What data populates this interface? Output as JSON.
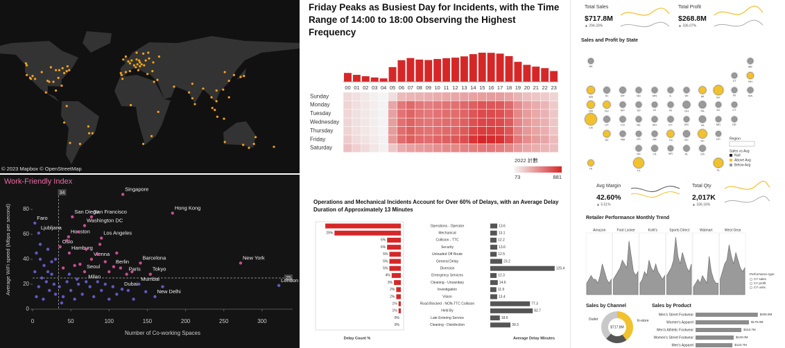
{
  "chart_data": [
    {
      "type": "map",
      "attribution": "© 2023 Mapbox © OpenStreetMap",
      "color": "#f5a31a",
      "lon": [
        -122,
        -118,
        -117,
        -122,
        -104,
        -97,
        -95,
        -90,
        -87,
        -84,
        -80,
        -77,
        -74,
        -71,
        -112,
        -115,
        -93,
        -83,
        -79,
        -73,
        -123,
        -99,
        -87,
        -47,
        -43,
        -58,
        -70,
        -77,
        -74,
        -48,
        0,
        2,
        -3,
        -9,
        -8,
        4,
        13,
        10,
        11,
        16,
        12,
        9,
        14,
        19,
        21,
        24,
        10,
        18,
        25,
        23,
        29,
        -6,
        -3,
        30,
        37,
        14,
        2,
        7,
        -7,
        31,
        35,
        55,
        36,
        18,
        28,
        3,
        77,
        73,
        77,
        100,
        101,
        104,
        106,
        106,
        114,
        121,
        116,
        127,
        139,
        135,
        121,
        107,
        115,
        90,
        80,
        151,
        145,
        153,
        116,
        175,
        138
      ],
      "lat": [
        37,
        34,
        33,
        47,
        40,
        31,
        30,
        30,
        42,
        34,
        26,
        39,
        41,
        42,
        33,
        36,
        45,
        42,
        44,
        46,
        49,
        19,
        21,
        -23,
        -23,
        -34,
        -33,
        -12,
        5,
        -16,
        51,
        49,
        40,
        39,
        37,
        52,
        52,
        53,
        48,
        48,
        42,
        45,
        46,
        47,
        52,
        60,
        60,
        59,
        54,
        38,
        41,
        53,
        56,
        50,
        56,
        50,
        41,
        47,
        33,
        30,
        32,
        25,
        -1,
        -34,
        -26,
        6,
        13,
        19,
        28,
        14,
        3,
        1,
        10,
        21,
        22,
        31,
        40,
        37,
        36,
        35,
        14,
        -6,
        -8,
        23,
        7,
        -34,
        -38,
        -27,
        -32,
        -37,
        -35
      ]
    },
    {
      "type": "scatter",
      "title": "Work-Friendly Index",
      "xlabel": "Number of Co-working Spaces",
      "ylabel": "Average WiFi speed (Mbps per second)",
      "xlim": [
        0,
        340
      ],
      "ylim": [
        0,
        95
      ],
      "xticks": [
        0,
        50,
        100,
        150,
        200,
        250,
        300
      ],
      "yticks": [
        0,
        20,
        40,
        60,
        80
      ],
      "ref_x": 34,
      "ref_y": 25,
      "series": [
        {
          "color": "#d9559b",
          "x": [
            118,
            183,
            52,
            77,
            68,
            47,
            90,
            36,
            48,
            77,
            141,
            272,
            106,
            68,
            123,
            154,
            60,
            45,
            70,
            85,
            95,
            62,
            40,
            55,
            100,
            115,
            130,
            88,
            110
          ],
          "y": [
            92,
            77,
            74,
            74,
            67,
            58,
            57,
            50,
            45,
            40,
            37,
            37,
            34,
            30,
            28,
            28,
            62,
            55,
            48,
            44,
            38,
            36,
            33,
            35,
            30,
            33,
            30,
            52,
            45
          ],
          "labels": [
            "Singapore",
            "Hong Kong",
            "San Diego",
            "San Francisco",
            "Washington DC",
            "Houston",
            "Los Angeles",
            "Oslo",
            "Hamburg",
            "Vienna",
            "Barcelona",
            "New York",
            "Berlin",
            "Seoul",
            "Paris",
            "Tokyo",
            null,
            null,
            null,
            null,
            null,
            null,
            null,
            null,
            null,
            null,
            null,
            null,
            null
          ]
        },
        {
          "color": "#6a5fd8",
          "x": [
            3,
            8,
            70,
            139,
            117,
            160,
            322,
            5,
            10,
            15,
            20,
            25,
            12,
            18,
            8,
            22,
            30,
            5,
            14,
            28,
            35,
            40,
            45,
            50,
            55,
            60,
            65,
            75,
            80,
            85,
            90,
            95,
            100,
            105,
            110,
            125,
            30,
            20,
            10,
            25,
            3,
            38,
            48,
            58,
            132,
            148,
            170
          ],
          "y": [
            69,
            61,
            22,
            20,
            16,
            10,
            19,
            45,
            40,
            35,
            30,
            28,
            25,
            22,
            18,
            15,
            12,
            10,
            8,
            20,
            18,
            10,
            22,
            15,
            8,
            20,
            12,
            18,
            10,
            22,
            15,
            20,
            8,
            18,
            12,
            15,
            40,
            48,
            52,
            38,
            30,
            5,
            28,
            24,
            8,
            14,
            18
          ],
          "labels": [
            "Faro",
            "Ljubljana",
            "Milan",
            "Mumbai",
            "Dubai",
            "New Delhi",
            "London",
            null,
            null,
            null,
            null,
            null,
            null,
            null,
            null,
            null,
            null,
            null,
            null,
            null,
            null,
            null,
            null,
            null,
            null,
            null,
            null,
            null,
            null,
            null,
            null,
            null,
            null,
            null,
            null,
            null,
            null,
            null,
            null,
            null,
            null,
            null,
            null,
            null,
            null,
            null,
            null
          ]
        }
      ]
    },
    {
      "type": "heatmap",
      "title": "Friday Peaks as Busiest Day for Incidents, with the Time Range of 14:00 to 18:00 Observing the Highest Frequency",
      "x": [
        "00",
        "01",
        "02",
        "03",
        "04",
        "05",
        "06",
        "07",
        "08",
        "09",
        "10",
        "11",
        "12",
        "13",
        "14",
        "15",
        "16",
        "17",
        "18",
        "19",
        "20",
        "21",
        "22",
        "23"
      ],
      "categories": [
        "Sunday",
        "Monday",
        "Tuesday",
        "Wednesday",
        "Thursday",
        "Friday",
        "Saturday"
      ],
      "values": [
        [
          180,
          150,
          120,
          90,
          73,
          160,
          300,
          320,
          330,
          340,
          360,
          370,
          380,
          390,
          400,
          410,
          420,
          410,
          380,
          330,
          280,
          260,
          240,
          200
        ],
        [
          200,
          160,
          130,
          100,
          80,
          380,
          560,
          620,
          560,
          540,
          560,
          580,
          590,
          620,
          660,
          700,
          690,
          680,
          620,
          480,
          400,
          360,
          320,
          240
        ],
        [
          190,
          150,
          120,
          95,
          78,
          400,
          580,
          640,
          580,
          560,
          580,
          600,
          610,
          640,
          700,
          740,
          740,
          720,
          660,
          500,
          420,
          370,
          330,
          250
        ],
        [
          195,
          150,
          125,
          98,
          80,
          410,
          590,
          650,
          590,
          570,
          590,
          610,
          620,
          660,
          720,
          760,
          760,
          740,
          680,
          510,
          430,
          380,
          340,
          255
        ],
        [
          200,
          160,
          130,
          100,
          82,
          420,
          600,
          660,
          600,
          580,
          600,
          620,
          640,
          680,
          760,
          800,
          790,
          770,
          700,
          520,
          440,
          390,
          350,
          260
        ],
        [
          230,
          170,
          140,
          110,
          85,
          430,
          610,
          670,
          620,
          600,
          640,
          660,
          690,
          730,
          830,
          881,
          870,
          840,
          740,
          560,
          480,
          420,
          380,
          300
        ],
        [
          280,
          220,
          170,
          130,
          90,
          250,
          360,
          400,
          420,
          440,
          470,
          490,
          500,
          520,
          540,
          560,
          560,
          540,
          500,
          430,
          380,
          350,
          320,
          290
        ]
      ],
      "totals": [
        1475,
        1160,
        935,
        723,
        568,
        2450,
        3600,
        3960,
        3700,
        3630,
        3800,
        3930,
        4030,
        4240,
        4610,
        4851,
        4830,
        4700,
        4280,
        3330,
        2830,
        2530,
        2280,
        1795
      ],
      "bar_color": "#d62728",
      "color_low": "#f4f4f4",
      "color_high": "#d62728",
      "colorbar": {
        "title": "2022 計數",
        "min": 73,
        "max": 881
      }
    },
    {
      "type": "bar",
      "orientation": "horizontal",
      "title": "Operations and Mechanical Incidents Account for Over 60% of Delays, with an Average Delay Duration of Approximately 13 Minutes",
      "categories": [
        "Operations - Operator",
        "Mechanical",
        "Collision - TTC",
        "Security",
        "Unloaded Off Route",
        "General Delay",
        "Diversion",
        "Emergency Services",
        "Cleaning - Unsanitary",
        "Investigation",
        "Vision",
        "Road Blocked - NON-TTC Collision",
        "Held By",
        "Late Entering Service",
        "Cleaning - Disinfection"
      ],
      "series": [
        {
          "name": "Delay Count %",
          "color": "#d62728",
          "values": [
            33,
            29,
            6,
            6,
            5,
            5,
            5,
            4,
            3,
            2,
            2,
            1,
            1,
            0,
            0
          ],
          "value_labels": [
            null,
            "29%",
            "6%",
            "6%",
            "5%",
            "5%",
            "5%",
            "4%",
            "3%",
            "2%",
            "2%",
            "1%",
            "1%",
            "0%",
            "0%"
          ]
        },
        {
          "name": "Average Delay Minutes",
          "color": "#555555",
          "values": [
            13.6,
            13.1,
            12.2,
            13.6,
            12.5,
            23.2,
            125.4,
            12.3,
            14.6,
            11.9,
            13.4,
            77.3,
            82.7,
            18.6,
            39.3
          ]
        }
      ]
    },
    {
      "type": "tile_map",
      "title": "Sales and Profit by State",
      "categories": [
        "AK",
        "ME",
        "VT",
        "NH",
        "WA",
        "ID",
        "MT",
        "ND",
        "MN",
        "IL",
        "WI",
        "MI",
        "NY",
        "RI",
        "MA",
        "OR",
        "NV",
        "WY",
        "SD",
        "IA",
        "IN",
        "OH",
        "PA",
        "NJ",
        "CT",
        "CA",
        "UT",
        "CO",
        "NE",
        "MO",
        "KY",
        "WV",
        "VA",
        "MD",
        "DE",
        "AZ",
        "NM",
        "KS",
        "AR",
        "TN",
        "NC",
        "SC",
        "DC",
        "OK",
        "LA",
        "MS",
        "AL",
        "GA",
        "HI",
        "TX",
        "FL"
      ],
      "values": [
        8,
        9,
        8,
        14,
        22,
        12,
        12,
        9,
        9,
        9,
        9,
        18,
        39,
        8,
        9,
        20,
        18,
        9,
        9,
        8,
        9,
        18,
        17,
        8,
        8,
        60,
        12,
        10,
        9,
        9,
        10,
        8,
        15,
        8,
        8,
        16,
        9,
        8,
        9,
        18,
        14,
        30,
        7,
        10,
        12,
        8,
        11,
        12,
        11,
        46,
        37
      ],
      "above_avg": [
        false,
        false,
        false,
        true,
        true,
        false,
        false,
        false,
        false,
        false,
        false,
        true,
        true,
        false,
        false,
        true,
        true,
        false,
        false,
        false,
        false,
        false,
        false,
        false,
        false,
        true,
        false,
        false,
        false,
        false,
        false,
        false,
        false,
        false,
        false,
        true,
        false,
        false,
        false,
        true,
        false,
        true,
        false,
        false,
        false,
        false,
        false,
        false,
        true,
        true,
        true
      ],
      "filter_label": "Region",
      "legend_title": "Sales vs Avg",
      "legend": [
        {
          "name": "Null",
          "color": "#222222"
        },
        {
          "name": "Above Avg",
          "color": "#f2c12e"
        },
        {
          "name": "Below Avg",
          "color": "#9a9a9a"
        }
      ]
    },
    {
      "type": "area",
      "title": "Retailer Performance Monthly Trend",
      "color": "#9a9a9a",
      "series": [
        {
          "name": "Amazon",
          "values": [
            3,
            4,
            5,
            4,
            4,
            3,
            5,
            8,
            6,
            4,
            3,
            4
          ]
        },
        {
          "name": "Foot Locker",
          "values": [
            4,
            5,
            6,
            7,
            9,
            8,
            7,
            14,
            10,
            6,
            5,
            6
          ]
        },
        {
          "name": "Kohl's",
          "values": [
            3,
            4,
            6,
            5,
            9,
            7,
            6,
            8,
            6,
            5,
            4,
            5
          ]
        },
        {
          "name": "Sports Direct",
          "values": [
            5,
            6,
            7,
            9,
            15,
            10,
            8,
            11,
            9,
            7,
            6,
            8
          ]
        },
        {
          "name": "Walmart",
          "values": [
            2,
            3,
            4,
            3,
            5,
            4,
            3,
            10,
            6,
            4,
            3,
            3
          ]
        },
        {
          "name": "West Gear",
          "values": [
            4,
            6,
            8,
            9,
            13,
            10,
            8,
            11,
            9,
            7,
            6,
            7
          ]
        }
      ],
      "legend_title": "Performance type",
      "legend": [
        "CY sales",
        "CY profit",
        "CY units"
      ]
    },
    {
      "type": "pie",
      "title": "Sales by Channel",
      "center_label": "$717.8M",
      "categories": [
        "In-store",
        null,
        "Outlet"
      ],
      "values": [
        288,
        158,
        272
      ],
      "colors": [
        "#f2c12e",
        "#555555",
        "#c8c8c8"
      ]
    },
    {
      "type": "bar",
      "orientation": "horizontal",
      "title": "Sales by Product",
      "color": "#8c8c8c",
      "categories": [
        "Men's Street Footwear",
        "Women's Apparel",
        "Men's Athletic Footwear",
        "Women's Street Footwear",
        "Men's Apparel"
      ],
      "values": [
        208.8,
        179.0,
        153.7,
        128.0,
        123.7
      ],
      "value_labels": [
        "$208.8M",
        "$179.0M",
        "$153.7M",
        "$128.0M",
        "$123.7M"
      ]
    }
  ],
  "dashboard": {
    "kpis": [
      {
        "label": "Total Sales",
        "value": "$717.8M",
        "change": "▲ 294.33%"
      },
      {
        "label": "Total Profit",
        "value": "$268.8M",
        "change": "▲ 336.07%"
      },
      {
        "label": "Avg Margin",
        "value": "42.60%",
        "change": "▲ 5.51%"
      },
      {
        "label": "Total Qty",
        "value": "2,017K",
        "change": "▲ 336.16%"
      }
    ]
  }
}
